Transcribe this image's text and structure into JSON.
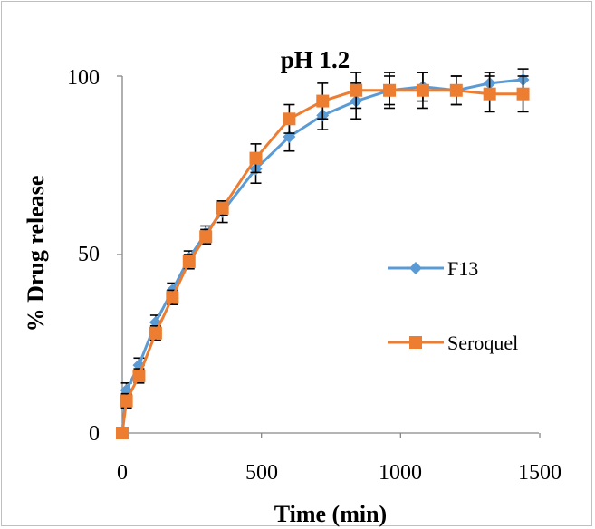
{
  "chart_data": {
    "type": "line",
    "title": "pH 1.2",
    "xlabel": "Time (min)",
    "ylabel": "% Drug release",
    "xlim": [
      0,
      1500
    ],
    "ylim": [
      0,
      100
    ],
    "x_ticks": [
      "0",
      "500",
      "1000",
      "1500"
    ],
    "y_ticks": [
      "0",
      "50",
      "100"
    ],
    "grid": false,
    "legend_position": "right",
    "series": [
      {
        "name": "F13",
        "color": "#5b9bd5",
        "marker": "diamond",
        "x": [
          0,
          15,
          60,
          120,
          180,
          240,
          300,
          360,
          480,
          600,
          720,
          840,
          960,
          1080,
          1200,
          1320,
          1440
        ],
        "y": [
          0,
          12,
          19,
          31,
          40,
          49,
          56,
          62,
          74,
          83,
          89,
          93,
          96,
          97,
          96,
          98,
          99
        ],
        "error": [
          0,
          2,
          2,
          2,
          2,
          2,
          2,
          3,
          4,
          4,
          4,
          5,
          4,
          4,
          4,
          3,
          3
        ]
      },
      {
        "name": "Seroquel",
        "color": "#ed7d31",
        "marker": "square",
        "x": [
          0,
          15,
          60,
          120,
          180,
          240,
          300,
          360,
          480,
          600,
          720,
          840,
          960,
          1080,
          1200,
          1320,
          1440
        ],
        "y": [
          0,
          9,
          16,
          28,
          38,
          48,
          55,
          63,
          77,
          88,
          93,
          96,
          96,
          96,
          96,
          95,
          95
        ],
        "error": [
          0,
          2,
          2,
          2,
          2,
          2,
          2,
          2,
          4,
          4,
          5,
          5,
          5,
          5,
          4,
          5,
          5
        ]
      }
    ]
  }
}
